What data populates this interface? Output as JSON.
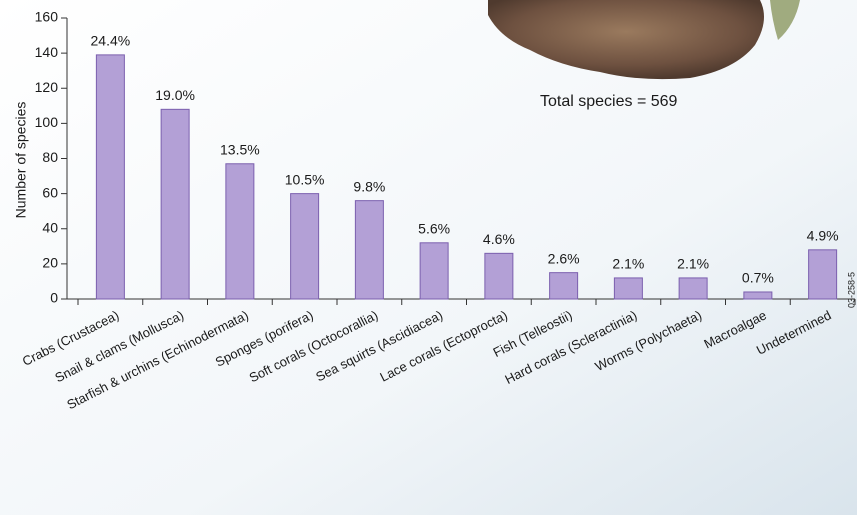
{
  "chart_data": {
    "type": "bar",
    "y_label": "Number of species",
    "annotation": "Total species = 569",
    "figure_id": "03-258-5",
    "categories": [
      "Crabs (Crustacea)",
      "Snail & clams (Mollusca)",
      "Starfish & urchins (Echinodermata)",
      "Sponges (porifera)",
      "Soft corals (Octocorallia)",
      "Sea squirts (Ascidiacea)",
      "Lace corals (Ectoprocta)",
      "Fish (Telleostii)",
      "Hard corals (Scleractinia)",
      "Worms (Polychaeta)",
      "Macroalgae",
      "Undetermined"
    ],
    "values": [
      139,
      108,
      77,
      60,
      56,
      32,
      26,
      15,
      12,
      12,
      4,
      28
    ],
    "percent_labels": [
      "24.4%",
      "19.0%",
      "13.5%",
      "10.5%",
      "9.8%",
      "5.6%",
      "4.6%",
      "2.6%",
      "2.1%",
      "2.1%",
      "0.7%",
      "4.9%"
    ],
    "color": "#b3a0d6",
    "ylim": [
      0,
      160
    ],
    "yticks": [
      0,
      20,
      40,
      60,
      80,
      100,
      120,
      140,
      160
    ]
  }
}
